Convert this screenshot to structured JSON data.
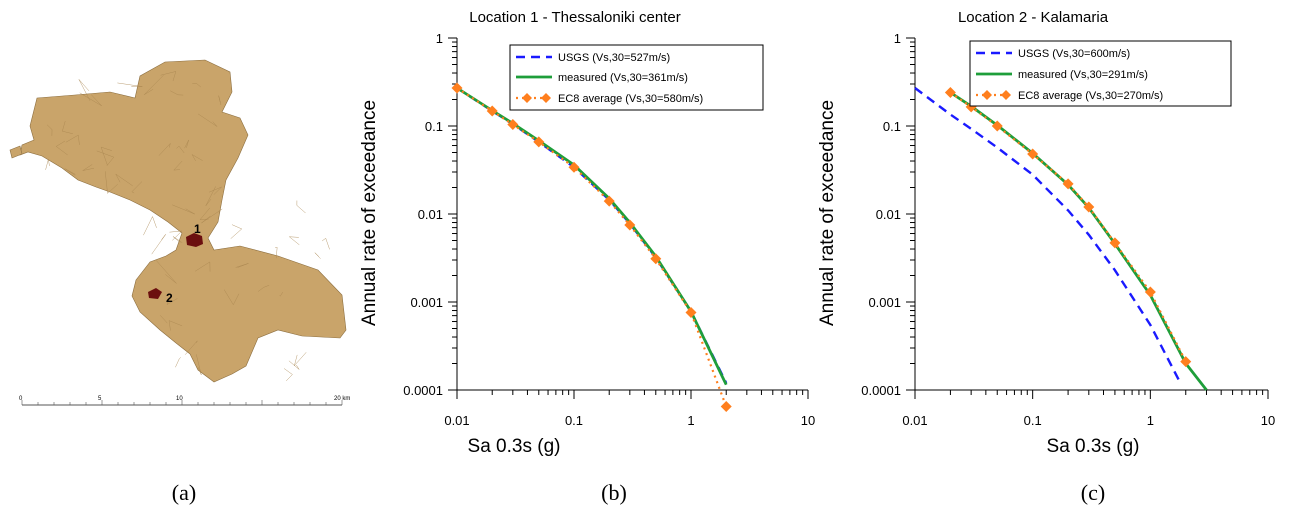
{
  "panels": {
    "a": {
      "letter": "(a)"
    },
    "b": {
      "letter": "(b)"
    },
    "c": {
      "letter": "(c)"
    }
  },
  "map": {
    "fill_color": "#c9a46a",
    "marker_color": "#6b0f0f",
    "markers": [
      {
        "label": "1"
      },
      {
        "label": "2"
      }
    ],
    "scalebar": {
      "ticks": [
        "0",
        "5",
        "10",
        "20 km"
      ]
    }
  },
  "colors": {
    "usgs": "#1a1aff",
    "measured": "#1e9e3a",
    "ec8": "#ff7f1e"
  },
  "chart_data": [
    {
      "type": "line",
      "title": "Location 1 - Thessaloniki center",
      "xlabel": "Sa 0.3s (g)",
      "ylabel": "Annual rate of exceedance",
      "xscale": "log",
      "yscale": "log",
      "xlim": [
        0.01,
        10
      ],
      "ylim": [
        0.0001,
        1
      ],
      "x_ticks": [
        "0.01",
        "0.1",
        "1",
        "10"
      ],
      "y_ticks": [
        "0.0001",
        "0.001",
        "0.01",
        "0.1",
        "1"
      ],
      "legend_position": "top-right",
      "series": [
        {
          "name": "USGS (Vs,30=527m/s)",
          "style": "dashed",
          "color": "#1a1aff",
          "x": [
            0.01,
            0.02,
            0.03,
            0.05,
            0.1,
            0.2,
            0.3,
            0.5,
            1,
            2
          ],
          "y": [
            0.27,
            0.148,
            0.105,
            0.066,
            0.034,
            0.0145,
            0.0078,
            0.0032,
            0.00078,
            0.00012
          ]
        },
        {
          "name": "measured (Vs,30=361m/s)",
          "style": "solid",
          "color": "#1e9e3a",
          "x": [
            0.01,
            0.02,
            0.03,
            0.05,
            0.1,
            0.2,
            0.3,
            0.5,
            1,
            2
          ],
          "y": [
            0.27,
            0.15,
            0.107,
            0.068,
            0.036,
            0.015,
            0.008,
            0.0033,
            0.00078,
            0.000115
          ]
        },
        {
          "name": "EC8 average (Vs,30=580m/s)",
          "style": "dotted-diamond",
          "color": "#ff7f1e",
          "x": [
            0.01,
            0.02,
            0.03,
            0.05,
            0.1,
            0.2,
            0.3,
            0.5,
            1,
            2
          ],
          "y": [
            0.27,
            0.148,
            0.104,
            0.066,
            0.034,
            0.014,
            0.0075,
            0.0031,
            0.00076,
            6.5e-05
          ]
        }
      ]
    },
    {
      "type": "line",
      "title": "Location 2 - Kalamaria",
      "xlabel": "Sa 0.3s (g)",
      "ylabel": "Annual rate of exceedance",
      "xscale": "log",
      "yscale": "log",
      "xlim": [
        0.01,
        10
      ],
      "ylim": [
        0.0001,
        1
      ],
      "x_ticks": [
        "0.01",
        "0.1",
        "1",
        "10"
      ],
      "y_ticks": [
        "0.0001",
        "0.001",
        "0.01",
        "0.1",
        "1"
      ],
      "legend_position": "top-right",
      "series": [
        {
          "name": "USGS (Vs,30=600m/s)",
          "style": "dashed",
          "color": "#1a1aff",
          "x": [
            0.01,
            0.02,
            0.03,
            0.05,
            0.1,
            0.2,
            0.3,
            0.5,
            1,
            1.8
          ],
          "y": [
            0.27,
            0.135,
            0.093,
            0.057,
            0.028,
            0.011,
            0.0058,
            0.0023,
            0.00055,
            0.00012
          ]
        },
        {
          "name": "measured (Vs,30=291m/s)",
          "style": "solid",
          "color": "#1e9e3a",
          "x": [
            0.02,
            0.03,
            0.05,
            0.1,
            0.2,
            0.3,
            0.5,
            1,
            2,
            3
          ],
          "y": [
            0.24,
            0.168,
            0.102,
            0.049,
            0.0215,
            0.0118,
            0.0046,
            0.0012,
            0.0002,
            0.0001
          ]
        },
        {
          "name": "EC8 average (Vs,30=270m/s)",
          "style": "dotted-diamond",
          "color": "#ff7f1e",
          "x": [
            0.02,
            0.03,
            0.05,
            0.1,
            0.2,
            0.3,
            0.5,
            1,
            2
          ],
          "y": [
            0.24,
            0.165,
            0.1,
            0.048,
            0.022,
            0.012,
            0.0047,
            0.0013,
            0.00021
          ]
        }
      ]
    }
  ]
}
